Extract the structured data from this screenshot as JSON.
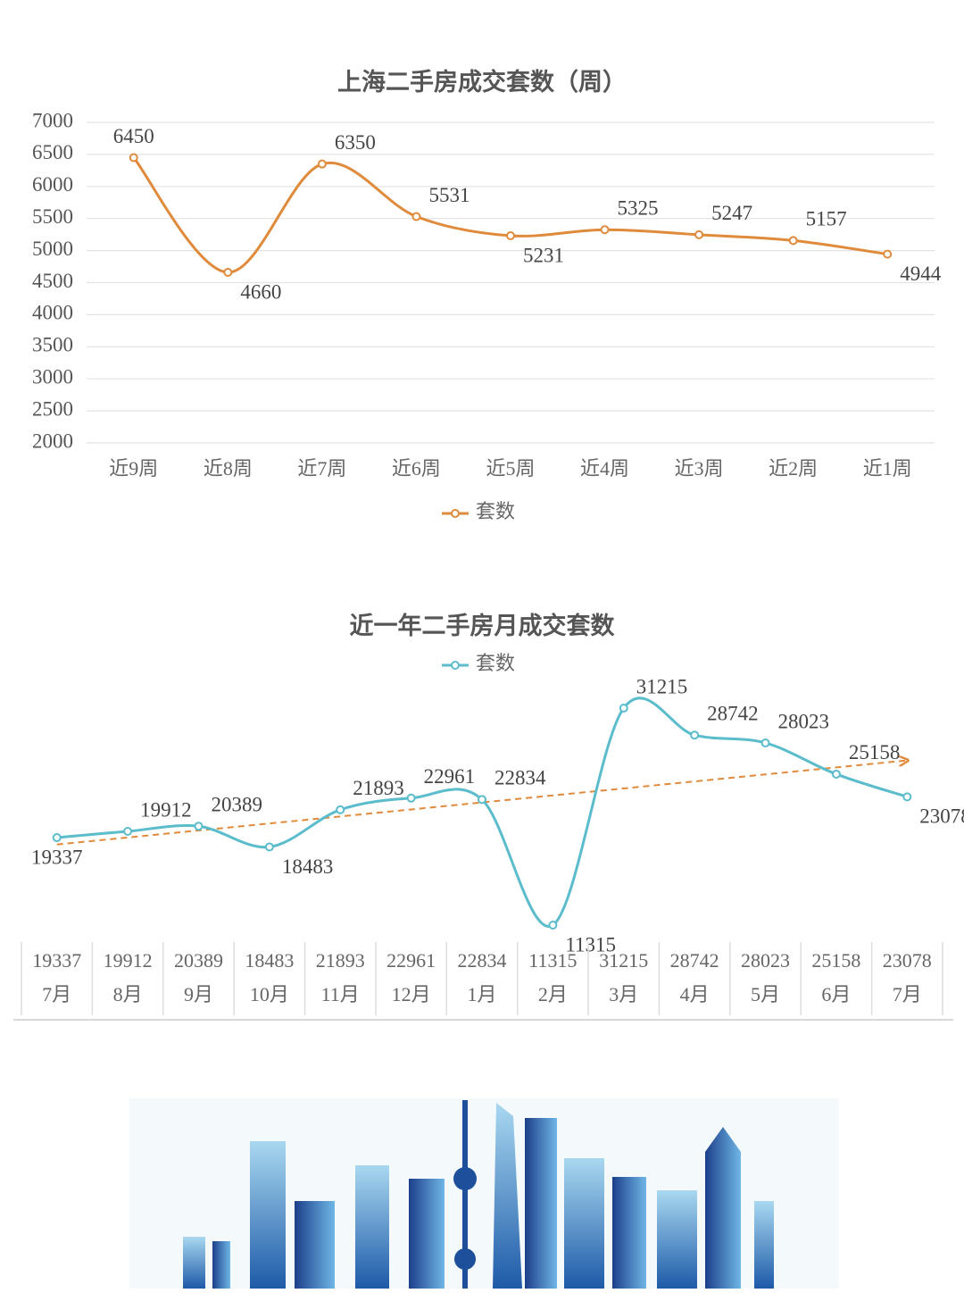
{
  "chart_data": [
    {
      "type": "line",
      "title": "上海二手房成交套数（周）",
      "categories": [
        "近9周",
        "近8周",
        "近7周",
        "近6周",
        "近5周",
        "近4周",
        "近3周",
        "近2周",
        "近1周"
      ],
      "series": [
        {
          "name": "套数",
          "color": "#e08a3c",
          "values": [
            6450,
            4660,
            6350,
            5531,
            5231,
            5325,
            5247,
            5157,
            4944
          ]
        }
      ],
      "ylim": [
        2000,
        7000
      ],
      "yticks": [
        2000,
        2500,
        3000,
        3500,
        4000,
        4500,
        5000,
        5500,
        6000,
        6500,
        7000
      ],
      "grid": true,
      "legend": "bottom"
    },
    {
      "type": "line",
      "title": "近一年二手房月成交套数",
      "categories": [
        "7月",
        "8月",
        "9月",
        "10月",
        "11月",
        "12月",
        "1月",
        "2月",
        "3月",
        "4月",
        "5月",
        "6月",
        "7月"
      ],
      "series": [
        {
          "name": "套数",
          "color": "#5bbccc",
          "values": [
            19337,
            19912,
            20389,
            18483,
            21893,
            22961,
            22834,
            11315,
            31215,
            28742,
            28023,
            25158,
            23078
          ]
        }
      ],
      "trendline": true,
      "trendline_color": "#e08a3c",
      "legend": "top",
      "data_table": true
    }
  ]
}
